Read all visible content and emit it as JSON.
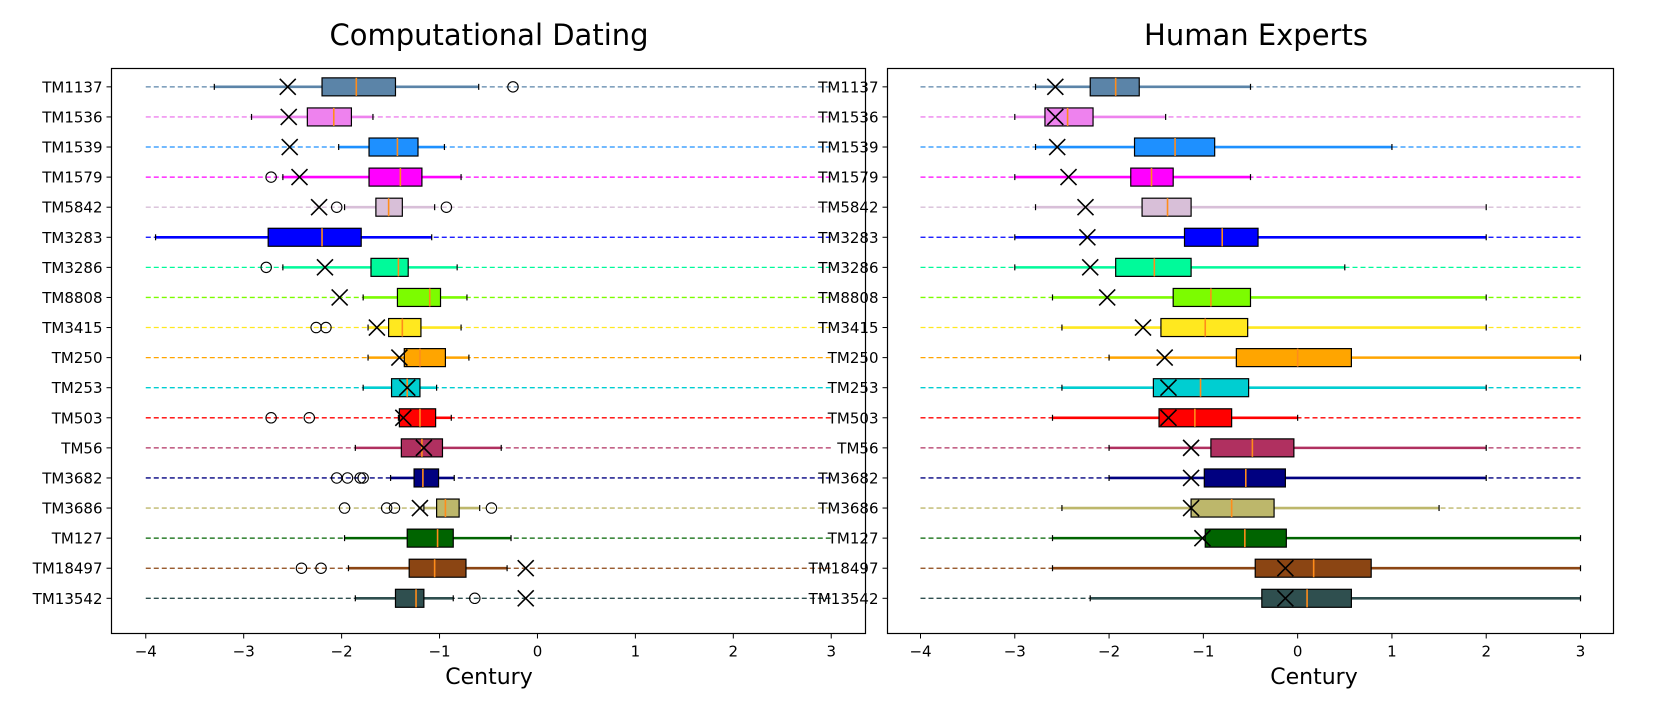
{
  "chart_data": [
    {
      "type": "boxplot",
      "title": "Computational Dating",
      "xlabel": "Century",
      "ylabel": "",
      "xlim": [
        -4.35,
        3.35
      ],
      "xticks": [
        -4,
        -3,
        -2,
        -1,
        0,
        1,
        2,
        3
      ],
      "xtick_labels": [
        "−4",
        "−3",
        "−2",
        "−1",
        "0",
        "1",
        "2",
        "3"
      ],
      "grid": false,
      "series": [
        {
          "name": "TM1137",
          "color": "#5b84a8",
          "box": [
            -3.3,
            -2.2,
            -1.85,
            -1.45,
            -0.6
          ],
          "outliers": [
            -0.25
          ],
          "cross": -2.55
        },
        {
          "name": "TM1536",
          "color": "#ee82ee",
          "box": [
            -2.92,
            -2.35,
            -2.08,
            -1.9,
            -1.68
          ],
          "outliers": [],
          "cross": -2.54
        },
        {
          "name": "TM1539",
          "color": "#1e90ff",
          "box": [
            -2.03,
            -1.72,
            -1.43,
            -1.22,
            -0.95
          ],
          "outliers": [],
          "cross": -2.53
        },
        {
          "name": "TM1579",
          "color": "#ff00ff",
          "box": [
            -2.6,
            -1.72,
            -1.4,
            -1.18,
            -0.78
          ],
          "outliers": [
            -2.72
          ],
          "cross": -2.43
        },
        {
          "name": "TM5842",
          "color": "#d8bfd8",
          "box": [
            -1.97,
            -1.65,
            -1.52,
            -1.38,
            -1.05
          ],
          "outliers": [
            -2.05,
            -0.93
          ],
          "cross": -2.23
        },
        {
          "name": "TM3283",
          "color": "#0000ff",
          "box": [
            -3.9,
            -2.75,
            -2.2,
            -1.8,
            -1.08
          ],
          "outliers": [],
          "cross": null
        },
        {
          "name": "TM3286",
          "color": "#00fa9a",
          "box": [
            -2.6,
            -1.7,
            -1.42,
            -1.32,
            -0.82
          ],
          "outliers": [
            -2.77
          ],
          "cross": -2.17
        },
        {
          "name": "TM8808",
          "color": "#7cfc00",
          "box": [
            -1.78,
            -1.43,
            -1.1,
            -0.99,
            -0.72
          ],
          "outliers": [],
          "cross": -2.02
        },
        {
          "name": "TM3415",
          "color": "#ffe81f",
          "box": [
            -1.73,
            -1.52,
            -1.38,
            -1.19,
            -0.78
          ],
          "outliers": [
            -2.26,
            -2.16
          ],
          "cross": -1.64
        },
        {
          "name": "TM250",
          "color": "#ffa500",
          "box": [
            -1.73,
            -1.36,
            -1.2,
            -0.94,
            -0.7
          ],
          "outliers": [],
          "cross": -1.41
        },
        {
          "name": "TM253",
          "color": "#00ced1",
          "box": [
            -1.78,
            -1.49,
            -1.33,
            -1.2,
            -1.03
          ],
          "outliers": [],
          "cross": -1.33
        },
        {
          "name": "TM503",
          "color": "#ff0000",
          "box": [
            -1.42,
            -1.41,
            -1.2,
            -1.04,
            -0.88
          ],
          "outliers": [
            -2.72,
            -2.33
          ],
          "cross": -1.37
        },
        {
          "name": "TM56",
          "color": "#b03060",
          "box": [
            -1.86,
            -1.39,
            -1.18,
            -0.97,
            -0.37
          ],
          "outliers": [],
          "cross": -1.16
        },
        {
          "name": "TM3682",
          "color": "#000080",
          "box": [
            -1.5,
            -1.26,
            -1.17,
            -1.01,
            -0.85
          ],
          "outliers": [
            -2.05,
            -1.94,
            -1.81,
            -1.78
          ],
          "cross": null
        },
        {
          "name": "TM3686",
          "color": "#bdb76b",
          "box": [
            -1.16,
            -1.03,
            -0.94,
            -0.8,
            -0.59
          ],
          "outliers": [
            -1.97,
            -1.54,
            -1.46,
            -0.47
          ],
          "cross": -1.2
        },
        {
          "name": "TM127",
          "color": "#006400",
          "box": [
            -1.97,
            -1.33,
            -1.02,
            -0.86,
            -0.27
          ],
          "outliers": [],
          "cross": null
        },
        {
          "name": "TM18497",
          "color": "#8b4513",
          "box": [
            -1.93,
            -1.31,
            -1.05,
            -0.73,
            -0.31
          ],
          "outliers": [
            -2.41,
            -2.21
          ],
          "cross": -0.12
        },
        {
          "name": "TM13542",
          "color": "#2f4f4f",
          "box": [
            -1.86,
            -1.45,
            -1.24,
            -1.16,
            -0.86
          ],
          "outliers": [
            -0.64
          ],
          "cross": -0.12
        }
      ]
    },
    {
      "type": "boxplot",
      "title": "Human Experts",
      "xlabel": "Century",
      "ylabel": "",
      "xlim": [
        -4.35,
        3.35
      ],
      "xticks": [
        -4,
        -3,
        -2,
        -1,
        0,
        1,
        2,
        3
      ],
      "xtick_labels": [
        "−4",
        "−3",
        "−2",
        "−1",
        "0",
        "1",
        "2",
        "3"
      ],
      "grid": false,
      "series": [
        {
          "name": "TM1137",
          "color": "#5b84a8",
          "box": [
            -2.78,
            -2.2,
            -1.93,
            -1.68,
            -0.5
          ],
          "outliers": [],
          "cross": -2.57
        },
        {
          "name": "TM1536",
          "color": "#ee82ee",
          "box": [
            -3.0,
            -2.68,
            -2.44,
            -2.17,
            -1.4
          ],
          "outliers": [],
          "cross": -2.57
        },
        {
          "name": "TM1539",
          "color": "#1e90ff",
          "box": [
            -2.78,
            -1.73,
            -1.3,
            -0.88,
            1.0
          ],
          "outliers": [],
          "cross": -2.55
        },
        {
          "name": "TM1579",
          "color": "#ff00ff",
          "box": [
            -3.0,
            -1.77,
            -1.55,
            -1.32,
            -0.5
          ],
          "outliers": [],
          "cross": -2.43
        },
        {
          "name": "TM5842",
          "color": "#d8bfd8",
          "box": [
            -2.78,
            -1.65,
            -1.38,
            -1.13,
            2.0
          ],
          "outliers": [],
          "cross": -2.25
        },
        {
          "name": "TM3283",
          "color": "#0000ff",
          "box": [
            -3.0,
            -1.2,
            -0.8,
            -0.42,
            2.0
          ],
          "outliers": [],
          "cross": -2.23
        },
        {
          "name": "TM3286",
          "color": "#00fa9a",
          "box": [
            -3.0,
            -1.93,
            -1.52,
            -1.13,
            0.5
          ],
          "outliers": [],
          "cross": -2.2
        },
        {
          "name": "TM8808",
          "color": "#7cfc00",
          "box": [
            -2.6,
            -1.32,
            -0.92,
            -0.5,
            2.0
          ],
          "outliers": [],
          "cross": -2.02
        },
        {
          "name": "TM3415",
          "color": "#ffe81f",
          "box": [
            -2.5,
            -1.45,
            -0.98,
            -0.53,
            2.0
          ],
          "outliers": [],
          "cross": -1.64
        },
        {
          "name": "TM250",
          "color": "#ffa500",
          "box": [
            -2.0,
            -0.65,
            0.0,
            0.57,
            3.0
          ],
          "outliers": [],
          "cross": -1.41
        },
        {
          "name": "TM253",
          "color": "#00ced1",
          "box": [
            -2.5,
            -1.53,
            -1.03,
            -0.52,
            2.0
          ],
          "outliers": [],
          "cross": -1.37
        },
        {
          "name": "TM503",
          "color": "#ff0000",
          "box": [
            -2.6,
            -1.47,
            -1.09,
            -0.7,
            0.0
          ],
          "outliers": [],
          "cross": -1.37
        },
        {
          "name": "TM56",
          "color": "#b03060",
          "box": [
            -2.0,
            -0.92,
            -0.48,
            -0.04,
            2.0
          ],
          "outliers": [],
          "cross": -1.13
        },
        {
          "name": "TM3682",
          "color": "#000080",
          "box": [
            -2.0,
            -0.99,
            -0.55,
            -0.13,
            2.0
          ],
          "outliers": [],
          "cross": -1.13
        },
        {
          "name": "TM3686",
          "color": "#bdb76b",
          "box": [
            -2.5,
            -1.13,
            -0.7,
            -0.25,
            1.5
          ],
          "outliers": [],
          "cross": -1.13
        },
        {
          "name": "TM127",
          "color": "#006400",
          "box": [
            -2.6,
            -0.98,
            -0.56,
            -0.12,
            3.0
          ],
          "outliers": [],
          "cross": -1.01
        },
        {
          "name": "TM18497",
          "color": "#8b4513",
          "box": [
            -2.6,
            -0.45,
            0.17,
            0.78,
            3.0
          ],
          "outliers": [],
          "cross": -0.13
        },
        {
          "name": "TM13542",
          "color": "#2f4f4f",
          "box": [
            -2.2,
            -0.38,
            0.1,
            0.57,
            3.0
          ],
          "outliers": [],
          "cross": -0.13
        }
      ]
    }
  ]
}
